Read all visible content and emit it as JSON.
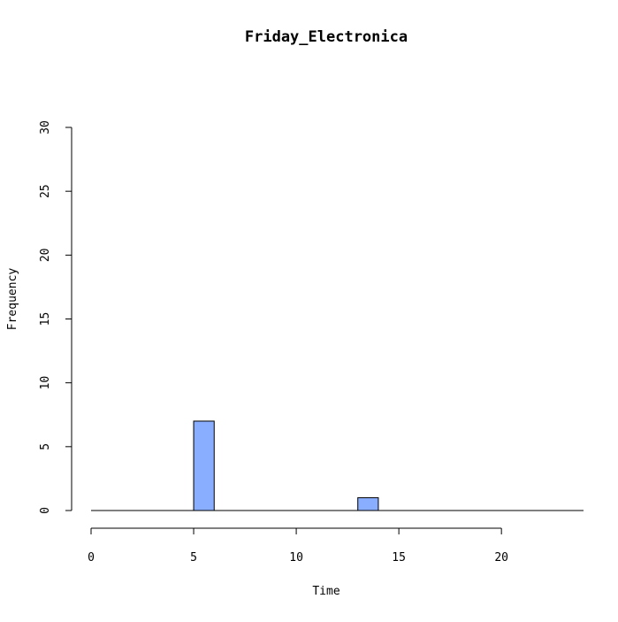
{
  "chart_data": {
    "type": "bar",
    "title": "Friday_Electronica",
    "xlabel": "Time",
    "ylabel": "Frequency",
    "xlim": [
      0,
      24
    ],
    "ylim": [
      0,
      30
    ],
    "x_ticks": [
      0,
      5,
      10,
      15,
      20
    ],
    "y_ticks": [
      0,
      5,
      10,
      15,
      20,
      25,
      30
    ],
    "bin_width": 1,
    "bins": [
      {
        "start": 0,
        "end": 1,
        "value": 0
      },
      {
        "start": 1,
        "end": 2,
        "value": 0
      },
      {
        "start": 2,
        "end": 3,
        "value": 0
      },
      {
        "start": 3,
        "end": 4,
        "value": 0
      },
      {
        "start": 4,
        "end": 5,
        "value": 0
      },
      {
        "start": 5,
        "end": 6,
        "value": 7
      },
      {
        "start": 6,
        "end": 7,
        "value": 0
      },
      {
        "start": 7,
        "end": 8,
        "value": 0
      },
      {
        "start": 8,
        "end": 9,
        "value": 0
      },
      {
        "start": 9,
        "end": 10,
        "value": 0
      },
      {
        "start": 10,
        "end": 11,
        "value": 0
      },
      {
        "start": 11,
        "end": 12,
        "value": 0
      },
      {
        "start": 12,
        "end": 13,
        "value": 0
      },
      {
        "start": 13,
        "end": 14,
        "value": 1
      },
      {
        "start": 14,
        "end": 15,
        "value": 0
      },
      {
        "start": 15,
        "end": 16,
        "value": 0
      },
      {
        "start": 16,
        "end": 17,
        "value": 0
      },
      {
        "start": 17,
        "end": 18,
        "value": 0
      },
      {
        "start": 18,
        "end": 19,
        "value": 0
      },
      {
        "start": 19,
        "end": 20,
        "value": 0
      },
      {
        "start": 20,
        "end": 21,
        "value": 0
      },
      {
        "start": 21,
        "end": 22,
        "value": 0
      },
      {
        "start": 22,
        "end": 23,
        "value": 0
      },
      {
        "start": 23,
        "end": 24,
        "value": 0
      }
    ],
    "bar_color": "#89AEFF",
    "grid": false,
    "legend": "none"
  }
}
